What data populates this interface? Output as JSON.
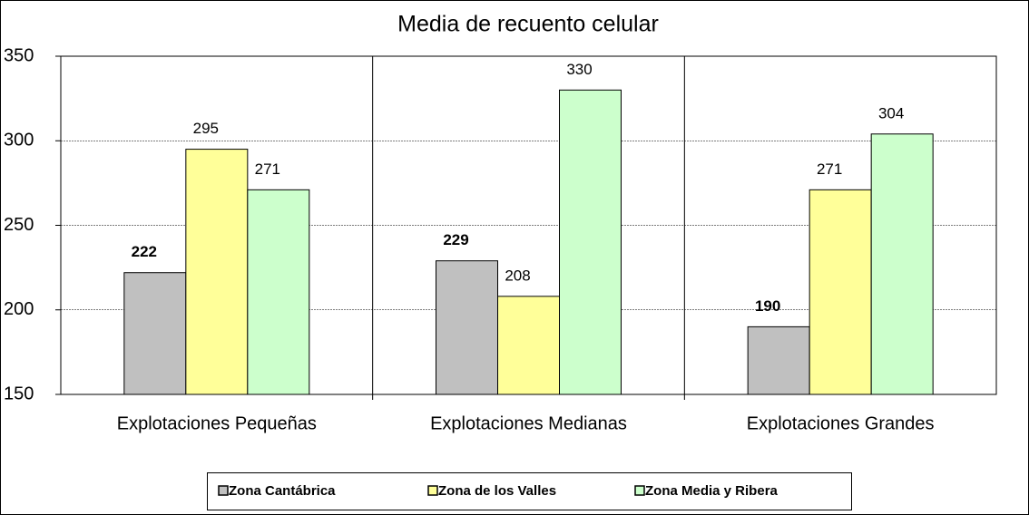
{
  "chart_data": {
    "type": "bar",
    "title": "Media de recuento celular",
    "categories": [
      "Explotaciones Pequeñas",
      "Explotaciones Medianas",
      "Explotaciones Grandes"
    ],
    "series": [
      {
        "name": "Zona Cantábrica",
        "color": "#c0c0c0",
        "values": [
          222,
          229,
          190
        ]
      },
      {
        "name": "Zona de los Valles",
        "color": "#ffff99",
        "values": [
          295,
          208,
          271
        ]
      },
      {
        "name": "Zona Media y Ribera",
        "color": "#ccffcc",
        "values": [
          271,
          330,
          304
        ]
      }
    ],
    "ylim": [
      150,
      350
    ],
    "yticks": [
      150,
      200,
      250,
      300,
      350
    ],
    "grid": true,
    "legend": "bottom"
  }
}
